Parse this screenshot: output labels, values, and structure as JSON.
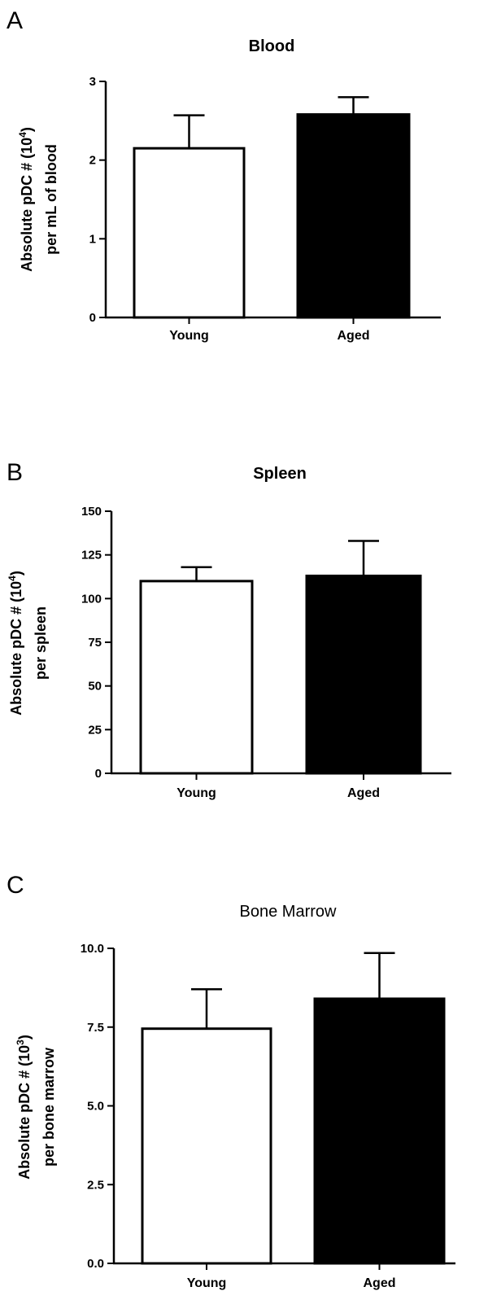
{
  "chart_data": [
    {
      "panel": "A",
      "type": "bar",
      "title": "Blood",
      "title_bold": true,
      "ylabel_lines": [
        "Absolute pDC # (10",
        "4",
        ")",
        "per mL of blood"
      ],
      "categories": [
        "Young",
        "Aged"
      ],
      "values": [
        2.15,
        2.58
      ],
      "errors": [
        0.42,
        0.22
      ],
      "bar_colors": [
        "#ffffff",
        "#000000"
      ],
      "ylim": [
        0,
        3
      ],
      "yticks": [
        0,
        1,
        2,
        3
      ],
      "ytick_labels": [
        "0",
        "1",
        "2",
        "3"
      ]
    },
    {
      "panel": "B",
      "type": "bar",
      "title": "Spleen",
      "title_bold": true,
      "ylabel_lines": [
        "Absolute pDC # (10",
        "4",
        ")",
        "per spleen"
      ],
      "categories": [
        "Young",
        "Aged"
      ],
      "values": [
        110,
        113
      ],
      "errors": [
        8,
        20
      ],
      "bar_colors": [
        "#ffffff",
        "#000000"
      ],
      "ylim": [
        0,
        150
      ],
      "yticks": [
        0,
        25,
        50,
        75,
        100,
        125,
        150
      ],
      "ytick_labels": [
        "0",
        "25",
        "50",
        "75",
        "100",
        "125",
        "150"
      ]
    },
    {
      "panel": "C",
      "type": "bar",
      "title": "Bone Marrow",
      "title_bold": false,
      "ylabel_lines": [
        "Absolute pDC # (10",
        "3",
        ")",
        "per bone marrow"
      ],
      "categories": [
        "Young",
        "Aged"
      ],
      "values": [
        7.45,
        8.4
      ],
      "errors": [
        1.25,
        1.45
      ],
      "bar_colors": [
        "#ffffff",
        "#000000"
      ],
      "ylim": [
        0,
        10
      ],
      "yticks": [
        0,
        2.5,
        5,
        7.5,
        10
      ],
      "ytick_labels": [
        "0.0",
        "2.5",
        "5.0",
        "7.5",
        "10.0"
      ]
    }
  ]
}
